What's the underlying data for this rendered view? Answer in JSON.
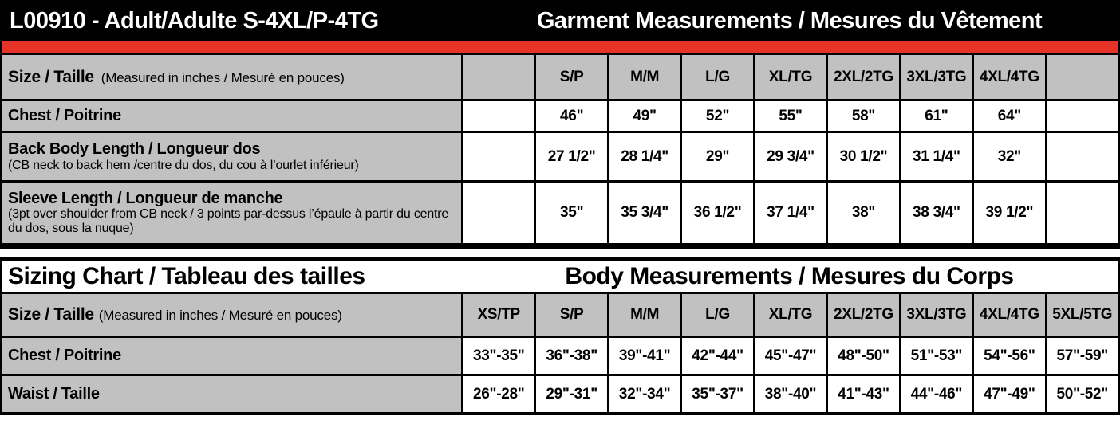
{
  "colors": {
    "accent_red": "#e73325",
    "cell_gray": "#c1c1c1"
  },
  "garment_table": {
    "title_left": "L00910 - Adult/Adulte S-4XL/P-4TG",
    "title_right": "Garment Measurements / Mesures du Vêtement",
    "header": {
      "label": "Size / Taille",
      "note": "(Measured in inches / Mesuré en pouces)",
      "columns": [
        "",
        "S/P",
        "M/M",
        "L/G",
        "XL/TG",
        "2XL/2TG",
        "3XL/3TG",
        "4XL/4TG",
        ""
      ]
    },
    "rows": [
      {
        "label": "Chest / Poitrine",
        "note": "",
        "values": [
          "",
          "46\"",
          "49\"",
          "52\"",
          "55\"",
          "58\"",
          "61\"",
          "64\"",
          ""
        ]
      },
      {
        "label": "Back Body Length / Longueur dos",
        "note": "(CB neck to back hem /centre du dos, du cou à l’ourlet inférieur)",
        "values": [
          "",
          "27 1/2\"",
          "28 1/4\"",
          "29\"",
          "29 3/4\"",
          "30 1/2\"",
          "31 1/4\"",
          "32\"",
          ""
        ]
      },
      {
        "label": "Sleeve Length / Longueur de manche",
        "note": "(3pt over shoulder from CB neck / 3 points par-dessus l’épaule à partir du centre du dos, sous la nuque)",
        "values": [
          "",
          "35\"",
          "35 3/4\"",
          "36 1/2\"",
          "37 1/4\"",
          "38\"",
          "38 3/4\"",
          "39 1/2\"",
          ""
        ]
      }
    ]
  },
  "body_table": {
    "title_left": "Sizing Chart / Tableau des tailles",
    "title_right": "Body Measurements / Mesures du Corps",
    "header": {
      "label": "Size / Taille",
      "note": "(Measured in inches / Mesuré en pouces)",
      "columns": [
        "XS/TP",
        "S/P",
        "M/M",
        "L/G",
        "XL/TG",
        "2XL/2TG",
        "3XL/3TG",
        "4XL/4TG",
        "5XL/5TG"
      ]
    },
    "rows": [
      {
        "label": "Chest / Poitrine",
        "values": [
          "33\"-35\"",
          "36\"-38\"",
          "39\"-41\"",
          "42\"-44\"",
          "45\"-47\"",
          "48\"-50\"",
          "51\"-53\"",
          "54\"-56\"",
          "57\"-59\""
        ]
      },
      {
        "label": "Waist / Taille",
        "values": [
          "26\"-28\"",
          "29\"-31\"",
          "32\"-34\"",
          "35\"-37\"",
          "38\"-40\"",
          "41\"-43\"",
          "44\"-46\"",
          "47\"-49\"",
          "50\"-52\""
        ]
      }
    ]
  }
}
